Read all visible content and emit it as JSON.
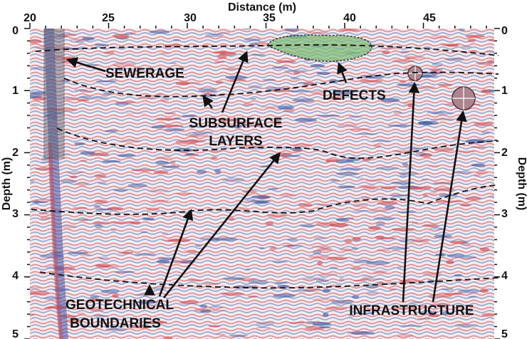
{
  "figure": {
    "x_axis_title": "Distance (m)",
    "y_axis_title_left": "Depth (m)",
    "y_axis_title_right": "Depth (m)",
    "x_ticks": [
      "20",
      "25",
      "30",
      "35",
      "40",
      "45"
    ],
    "y_ticks": [
      "0",
      "1",
      "2",
      "3",
      "4",
      "5"
    ],
    "distance_range_m": [
      20,
      49.5
    ],
    "depth_range_m": [
      0,
      5
    ]
  },
  "annotations": {
    "sewerage": "SEWERAGE",
    "defects": "DEFECTS",
    "subsurface_line1": "SUBSURFACE",
    "subsurface_line2": "LAYERS",
    "geotechnical_line1": "GEOTECHNICAL",
    "geotechnical_line2": "BOUNDARIES",
    "infrastructure": "INFRASTRUCTURE"
  },
  "colors": {
    "positive_amplitude": "#d24a4e",
    "negative_amplitude": "#3f5fa8",
    "defect_highlight": "#7fbf7a",
    "sewerage_column": "#5f5f6e",
    "annotation_ink": "#111111"
  }
}
